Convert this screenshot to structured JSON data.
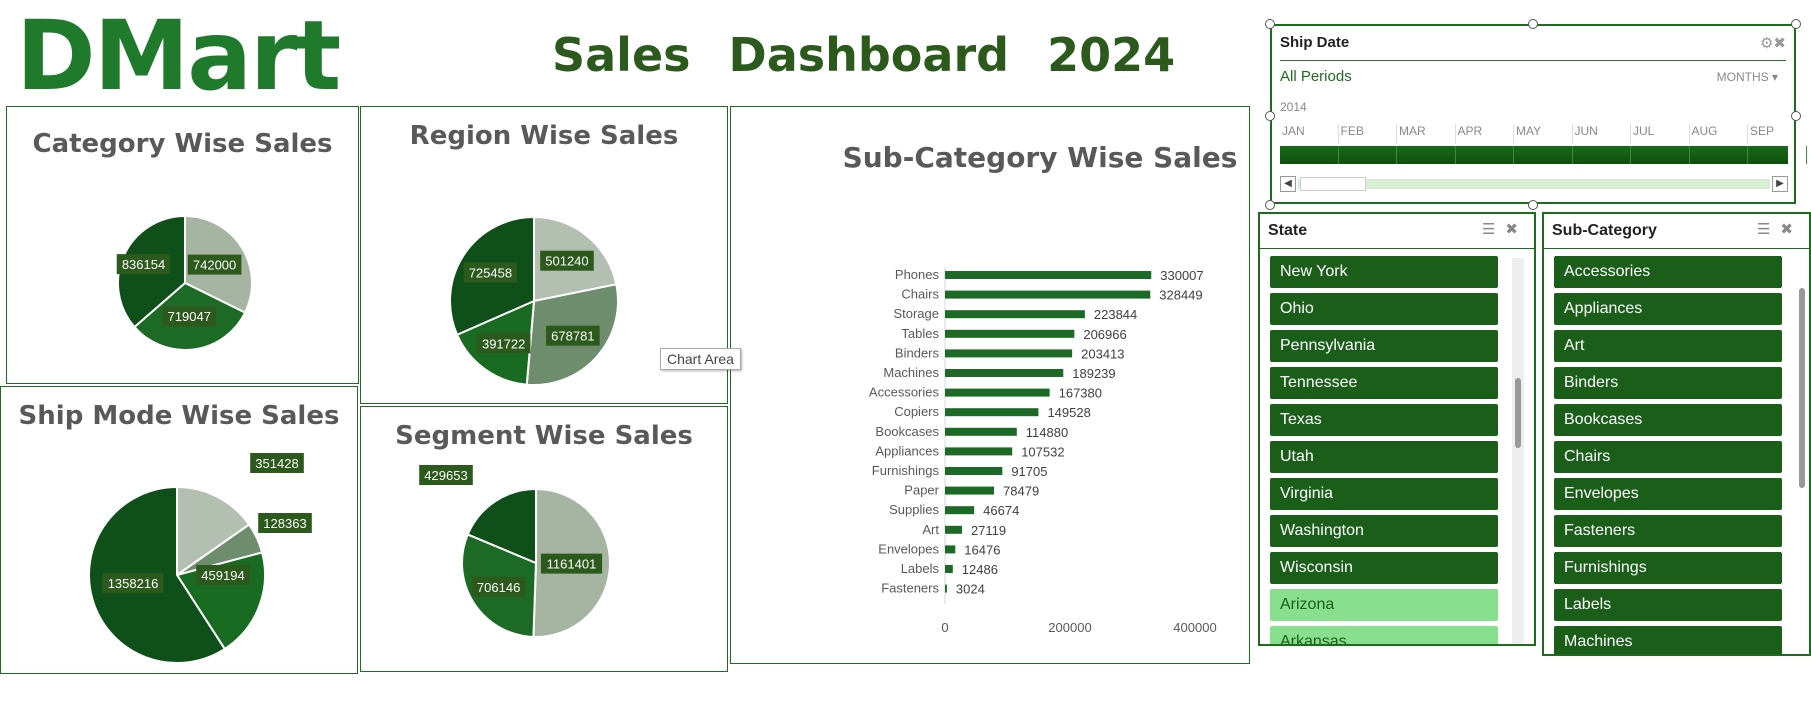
{
  "header": {
    "logo_text": "DMart",
    "title": "Sales   Dashboard   2024"
  },
  "colors": {
    "accent": "#2c5a1c",
    "brand": "#1f7a2c",
    "slicer_on": "#1a5e1a",
    "slicer_off": "#88e08e"
  },
  "tooltip": "Chart Area",
  "timeline": {
    "header": "Ship Date",
    "filter_icon": "clear-filter-icon",
    "periods": "All Periods",
    "unit": "MONTHS",
    "year": "2014",
    "months": [
      "JAN",
      "FEB",
      "MAR",
      "APR",
      "MAY",
      "JUN",
      "JUL",
      "AUG",
      "SEP"
    ]
  },
  "state_slicer": {
    "header": "State",
    "items": [
      "New York",
      "Ohio",
      "Pennsylvania",
      "Tennessee",
      "Texas",
      "Utah",
      "Virginia",
      "Washington",
      "Wisconsin",
      "Arizona",
      "Arkansas"
    ],
    "selected_count": 9
  },
  "subcategory_slicer": {
    "header": "Sub-Category",
    "items": [
      "Accessories",
      "Appliances",
      "Art",
      "Binders",
      "Bookcases",
      "Chairs",
      "Envelopes",
      "Fasteners",
      "Furnishings",
      "Labels",
      "Machines"
    ],
    "selected_count": 11
  },
  "chart_data": [
    {
      "type": "pie",
      "title": "Category Wise Sales",
      "values": [
        742000,
        719047,
        836154
      ],
      "colors": [
        "#a6b5a2",
        "#1c6a25",
        "#0f4f1a"
      ]
    },
    {
      "type": "pie",
      "title": "Region Wise Sales",
      "values": [
        501240,
        678781,
        391722,
        725458
      ],
      "colors": [
        "#b3bfb0",
        "#6e8d6c",
        "#1a6b22",
        "#0f4f1a"
      ]
    },
    {
      "type": "pie",
      "title": "Ship Mode Wise Sales",
      "values": [
        351428,
        128363,
        459194,
        1358216
      ],
      "colors": [
        "#b3bfb0",
        "#6e8d6c",
        "#1a6b22",
        "#0f4f1a"
      ]
    },
    {
      "type": "pie",
      "title": "Segment Wise Sales",
      "values": [
        1161401,
        706146,
        429653
      ],
      "colors": [
        "#a6b5a2",
        "#1c6a25",
        "#0f4f1a"
      ]
    },
    {
      "type": "bar",
      "orientation": "horizontal",
      "title": "Sub-Category Wise Sales",
      "categories": [
        "Phones",
        "Chairs",
        "Storage",
        "Tables",
        "Binders",
        "Machines",
        "Accessories",
        "Copiers",
        "Bookcases",
        "Appliances",
        "Furnishings",
        "Paper",
        "Supplies",
        "Art",
        "Envelopes",
        "Labels",
        "Fasteners"
      ],
      "values": [
        330007,
        328449,
        223844,
        206966,
        203413,
        189239,
        167380,
        149528,
        114880,
        107532,
        91705,
        78479,
        46674,
        27119,
        16476,
        12486,
        3024
      ],
      "xlim": [
        0,
        400000
      ],
      "xticks": [
        "0",
        "200000",
        "400000"
      ],
      "color": "#1c6a25"
    }
  ]
}
